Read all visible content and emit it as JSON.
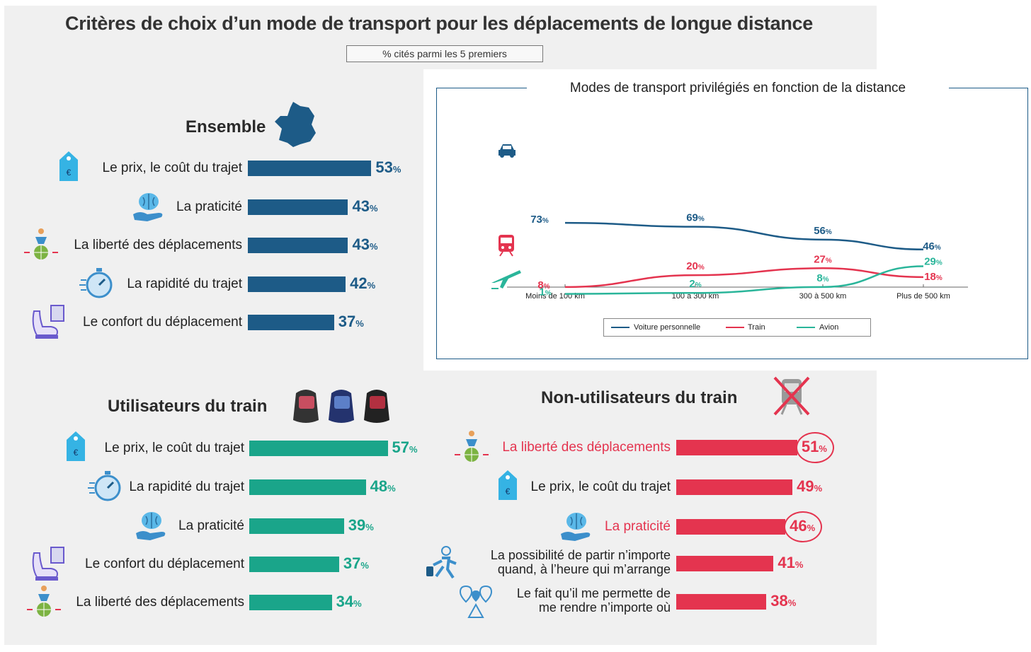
{
  "title": "Critères de choix d’un mode de transport pour les déplacements de longue distance",
  "subtitle": "% cités parmi les 5 premiers",
  "colors": {
    "ensemble": "#1d5b87",
    "utilisateurs": "#1aa58a",
    "non_utilisateurs": "#e4344f",
    "voiture": "#1d5b87",
    "train": "#e4344f",
    "avion": "#2ab59a"
  },
  "chart_data": [
    {
      "type": "bar",
      "title": "Ensemble",
      "unit": "%",
      "categories": [
        "Le prix, le coût du trajet",
        "La praticité",
        "La liberté des déplacements",
        "La rapidité du trajet",
        "Le confort du déplacement"
      ],
      "values": [
        53,
        43,
        43,
        42,
        37
      ],
      "icons": [
        "price-tag-icon",
        "brain-hand-icon",
        "globe-person-icon",
        "stopwatch-icon",
        "seat-icon"
      ]
    },
    {
      "type": "bar",
      "title": "Utilisateurs du train",
      "unit": "%",
      "categories": [
        "Le prix, le coût du trajet",
        "La rapidité du trajet",
        "La praticité",
        "Le confort du déplacement",
        "La liberté des déplacements"
      ],
      "values": [
        57,
        48,
        39,
        37,
        34
      ],
      "icons": [
        "price-tag-icon",
        "stopwatch-icon",
        "brain-hand-icon",
        "seat-icon",
        "globe-person-icon"
      ]
    },
    {
      "type": "bar",
      "title": "Non-utilisateurs du train",
      "unit": "%",
      "categories": [
        "La liberté des déplacements",
        "Le prix, le coût du trajet",
        "La praticité",
        "La possibilité de partir n’importe quand, à l’heure qui m’arrange",
        "Le fait qu’il me permette de me rendre n’importe où"
      ],
      "category_lines": [
        [
          "La liberté des déplacements"
        ],
        [
          "Le prix, le coût du trajet"
        ],
        [
          "La praticité"
        ],
        [
          "La possibilité de partir n’importe",
          "quand, à l’heure qui m’arrange"
        ],
        [
          "Le fait qu’il me permette de",
          "me rendre n’importe où"
        ]
      ],
      "values": [
        51,
        49,
        46,
        41,
        38
      ],
      "highlighted": [
        true,
        false,
        true,
        false,
        false
      ],
      "label_colors": [
        "#e4344f",
        "#222222",
        "#e4344f",
        "#222222",
        "#222222"
      ],
      "icons": [
        "globe-person-icon",
        "price-tag-icon",
        "brain-hand-icon",
        "running-person-icon",
        "map-pins-icon"
      ]
    },
    {
      "type": "line",
      "title": "Modes de transport privilégiés en fonction de la distance",
      "unit": "%",
      "categories": [
        "Moins de 100 km",
        "100 à 300 km",
        "300 à 500 km",
        "Plus de 500 km"
      ],
      "series": [
        {
          "name": "Voiture personnelle",
          "values": [
            73,
            69,
            56,
            46
          ],
          "icon": "car-icon"
        },
        {
          "name": "Train",
          "values": [
            8,
            20,
            27,
            18
          ],
          "icon": "train-icon"
        },
        {
          "name": "Avion",
          "values": [
            1,
            2,
            8,
            29
          ],
          "icon": "plane-icon"
        }
      ],
      "grid": false,
      "legend": "bottom"
    }
  ]
}
